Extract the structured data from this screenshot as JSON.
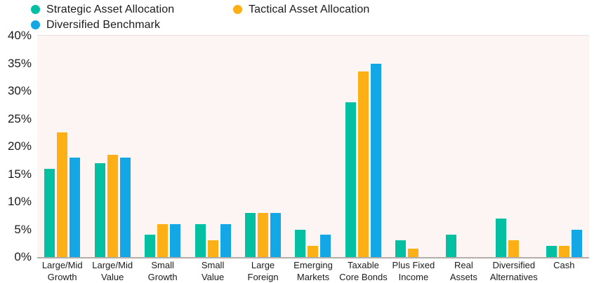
{
  "chart_data": {
    "type": "bar",
    "title": "",
    "categories": [
      "Large/Mid\nGrowth",
      "Large/Mid\nValue",
      "Small\nGrowth",
      "Small\nValue",
      "Large\nForeign",
      "Emerging\nMarkets",
      "Taxable\nCore Bonds",
      "Plus Fixed\nIncome",
      "Real\nAssets",
      "Diversified\nAlternatives",
      "Cash"
    ],
    "series": [
      {
        "name": "Strategic Asset Allocation",
        "color": "#02c0a1",
        "values": [
          16,
          17,
          4,
          6,
          8,
          5,
          28,
          3,
          4,
          7,
          2
        ]
      },
      {
        "name": "Tactical Asset Allocation",
        "color": "#fcb016",
        "values": [
          22.5,
          18.5,
          6,
          3,
          8,
          2,
          33.5,
          1.5,
          0,
          3,
          2
        ]
      },
      {
        "name": "Diversified Benchmark",
        "color": "#14a7e5",
        "values": [
          18,
          18,
          6,
          6,
          8,
          4,
          35,
          0,
          0,
          0,
          5
        ]
      }
    ],
    "xlabel": "",
    "ylabel": "",
    "ylim": [
      0,
      40
    ],
    "yticks": [
      0,
      5,
      10,
      15,
      20,
      25,
      30,
      35,
      40
    ],
    "ytick_suffix": "%",
    "grid": false,
    "legend_position": "top-left",
    "plot_background": "#fdf5f3",
    "axis_line_color": "#b5adaa",
    "text_color": "#1b1b1b"
  }
}
